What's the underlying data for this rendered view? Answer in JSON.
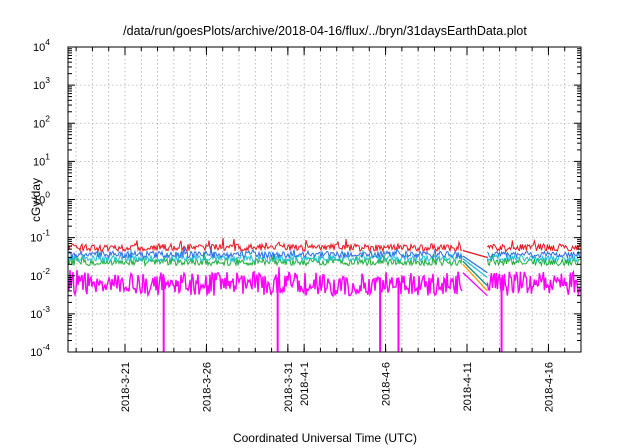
{
  "chart_data": {
    "type": "line",
    "title": "/data/run/goesPlots/archive/2018-04-16/flux/../bryn/31daysEarthData.plot",
    "xlabel": "Coordinated Universal Time (UTC)",
    "ylabel": "cGy/day",
    "yscale": "log",
    "ylim": [
      0.0001,
      10000
    ],
    "xlim": [
      "2018-03-17T12:00",
      "2018-04-18T00:00"
    ],
    "x_ticks": [
      "2018-3-21",
      "2018-3-26",
      "2018-3-31",
      "2018-4-1",
      "2018-4-6",
      "2018-4-11",
      "2018-4-16"
    ],
    "x_tick_dates": [
      "2018-03-21",
      "2018-03-26",
      "2018-03-31",
      "2018-04-01",
      "2018-04-06",
      "2018-04-11",
      "2018-04-16"
    ],
    "y_ticks": [
      {
        "value": 0.0001,
        "base": "10",
        "exp": "-4"
      },
      {
        "value": 0.001,
        "base": "10",
        "exp": "-3"
      },
      {
        "value": 0.01,
        "base": "10",
        "exp": "-2"
      },
      {
        "value": 0.1,
        "base": "10",
        "exp": "-1"
      },
      {
        "value": 1,
        "base": "10",
        "exp": "0"
      },
      {
        "value": 10,
        "base": "10",
        "exp": "1"
      },
      {
        "value": 100,
        "base": "10",
        "exp": "2"
      },
      {
        "value": 1000,
        "base": "10",
        "exp": "3"
      },
      {
        "value": 10000,
        "base": "10",
        "exp": "4"
      }
    ],
    "grid": true,
    "legend": "none",
    "data_gap": [
      "2018-04-10T18:00",
      "2018-04-12T06:00"
    ],
    "series": [
      {
        "color": "#e8141e",
        "typical": 0.055,
        "spread": 0.014,
        "jitter": 0.22
      },
      {
        "color": "#2c6fe8",
        "typical": 0.036,
        "spread": 0.01,
        "jitter": 0.2
      },
      {
        "color": "#22c0d8",
        "typical": 0.029,
        "spread": 0.009,
        "jitter": 0.2
      },
      {
        "color": "#1fae3c",
        "typical": 0.023,
        "spread": 0.008,
        "jitter": 0.22
      },
      {
        "color": "#ff00ff",
        "typical": 0.009,
        "spread": 0.006,
        "jitter": 0.35,
        "low_floor": 0.0035,
        "dropouts": [
          "2018-03-23T09:00",
          "2018-03-30T09:00",
          "2018-04-05T16:00",
          "2018-04-06T19:00",
          "2018-04-13T03:00"
        ]
      },
      {
        "color": "#ff9a00",
        "gap_end_value": 0.004
      },
      {
        "color": "#118c8c",
        "gap_end_value": 0.0055
      }
    ]
  }
}
